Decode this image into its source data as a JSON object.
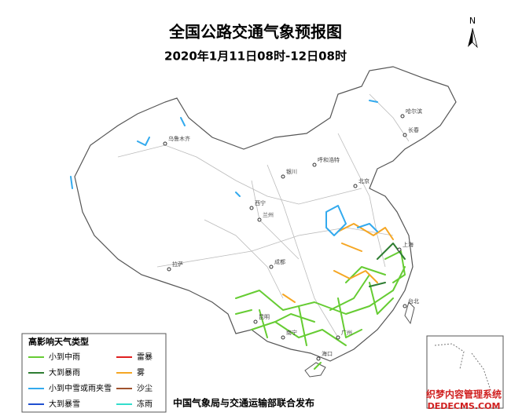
{
  "header": {
    "title": "全国公路交通气象预报图",
    "subtitle": "2020年1月11日08时-12日08时"
  },
  "compass": "N",
  "legend": {
    "title": "高影响天气类型",
    "items": [
      {
        "label": "小到中雨",
        "color": "#66cc33"
      },
      {
        "label": "大到暴雨",
        "color": "#2e7d32"
      },
      {
        "label": "小到中雪或雨夹雪",
        "color": "#33aaee"
      },
      {
        "label": "大到暴雪",
        "color": "#1f4fd0"
      },
      {
        "label": "雷暴",
        "color": "#e02020"
      },
      {
        "label": "雾",
        "color": "#f5a623"
      },
      {
        "label": "沙尘",
        "color": "#a0522d"
      },
      {
        "label": "冻雨",
        "color": "#33ddcc"
      }
    ]
  },
  "cities": [
    "乌鲁木齐",
    "哈尔滨",
    "长春",
    "呼和浩特",
    "北京",
    "银川",
    "西宁",
    "兰州",
    "拉萨",
    "成都",
    "昆明",
    "南宁",
    "广州",
    "海口",
    "台北",
    "上海"
  ],
  "footer": "中国气象局与交通运输部联合发布",
  "watermark": {
    "line1": "织梦内容管理系统",
    "line2": "DEDECMS.COM"
  }
}
